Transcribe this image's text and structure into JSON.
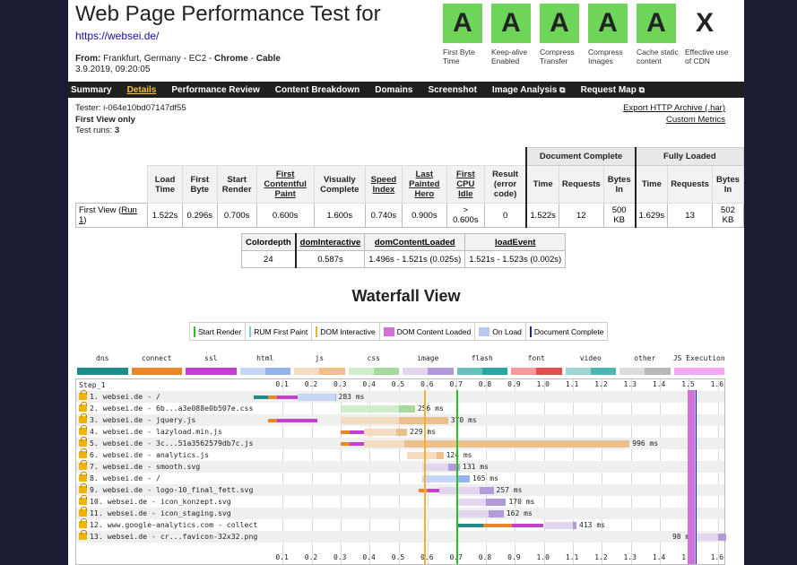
{
  "header": {
    "title": "Web Page Performance Test for",
    "url": "https://websei.de/",
    "from_label": "From:",
    "from_value": " Frankfurt, Germany - EC2 - ",
    "browser": "Chrome",
    "sep": " - ",
    "connection": "Cable",
    "date": "3.9.2019, 09:20:05"
  },
  "grades": [
    {
      "grade": "A",
      "label": "First Byte Time"
    },
    {
      "grade": "A",
      "label": "Keep-alive Enabled"
    },
    {
      "grade": "A",
      "label": "Compress Transfer"
    },
    {
      "grade": "A",
      "label": "Compress Images"
    },
    {
      "grade": "A",
      "label": "Cache static content"
    },
    {
      "grade": "X",
      "label": "Effective use of CDN"
    }
  ],
  "nav": {
    "summary": "Summary",
    "details": "Details",
    "perf_review": "Performance Review",
    "content_breakdown": "Content Breakdown",
    "domains": "Domains",
    "screenshot": "Screenshot",
    "image_analysis": "Image Analysis",
    "request_map": "Request Map",
    "ext_icon": "⧉"
  },
  "meta": {
    "tester": "Tester: i-064e10bd07147df55",
    "first_view": "First View only",
    "runs_label": "Test runs: ",
    "runs_value": "3"
  },
  "links": {
    "har": "Export HTTP Archive (.har)",
    "custom": "Custom Metrics"
  },
  "results": {
    "group_doc": "Document Complete",
    "group_full": "Fully Loaded",
    "cols": {
      "load_time": "Load Time",
      "first_byte": "First Byte",
      "start_render": "Start Render",
      "first_contentful": "First Contentful Paint",
      "visually_complete": "Visually Complete",
      "speed_index": "Speed Index",
      "last_painted": "Last Painted Hero",
      "first_cpu": "First CPU Idle",
      "result": "Result (error code)",
      "time": "Time",
      "requests": "Requests",
      "bytes_in": "Bytes In"
    },
    "row": {
      "label": "First View (",
      "run": "Run 1",
      "label_end": ")",
      "load_time": "1.522s",
      "first_byte": "0.296s",
      "start_render": "0.700s",
      "first_contentful": "0.600s",
      "visually_complete": "1.600s",
      "speed_index": "0.740s",
      "last_painted": "0.900s",
      "first_cpu": "> 0.600s",
      "result": "0",
      "doc_time": "1.522s",
      "doc_requests": "12",
      "doc_bytes": "500 KB",
      "full_time": "1.629s",
      "full_requests": "13",
      "full_bytes": "502 KB"
    }
  },
  "dom_table": {
    "cols": [
      "Colordepth",
      "domInteractive",
      "domContentLoaded",
      "loadEvent"
    ],
    "values": [
      "24",
      "0.587s",
      "1.496s - 1.521s (0.025s)",
      "1.521s - 1.523s (0.002s)"
    ]
  },
  "waterfall": {
    "title": "Waterfall View",
    "legend": [
      {
        "label": "Start Render",
        "color": "#28c028",
        "kind": "line"
      },
      {
        "label": "RUM First Paint",
        "color": "#80d0d0",
        "kind": "line"
      },
      {
        "label": "DOM Interactive",
        "color": "#f0b030",
        "kind": "line"
      },
      {
        "label": "DOM Content Loaded",
        "color": "#d070d8",
        "kind": "box"
      },
      {
        "label": "On Load",
        "color": "#b8c8f0",
        "kind": "box"
      },
      {
        "label": "Document Complete",
        "color": "#2020c0",
        "kind": "line"
      }
    ],
    "types": [
      {
        "label": "dns",
        "c1": "#1e8a8a",
        "c2": "#1e8a8a"
      },
      {
        "label": "connect",
        "c1": "#e8872a",
        "c2": "#e8872a"
      },
      {
        "label": "ssl",
        "c1": "#c43fce",
        "c2": "#c43fce"
      },
      {
        "label": "html",
        "c1": "#c6d6f4",
        "c2": "#92b4ea"
      },
      {
        "label": "js",
        "c1": "#f3dcbf",
        "c2": "#ebc08c"
      },
      {
        "label": "css",
        "c1": "#cfeccb",
        "c2": "#a5da9c"
      },
      {
        "label": "image",
        "c1": "#e2d6ef",
        "c2": "#b39bd9"
      },
      {
        "label": "flash",
        "c1": "#6bc0c0",
        "c2": "#2da4a4"
      },
      {
        "label": "font",
        "c1": "#f49a9a",
        "c2": "#e24e4e"
      },
      {
        "label": "video",
        "c1": "#9fd4d4",
        "c2": "#4eb4b4"
      },
      {
        "label": "other",
        "c1": "#dcdcdc",
        "c2": "#b8b8b8"
      },
      {
        "label": "JS Execution",
        "c1": "#f5a7f5",
        "c2": "#f5a7f5"
      }
    ],
    "step": "Step_1",
    "ticks": [
      "0.1",
      "0.2",
      "0.3",
      "0.4",
      "0.5",
      "0.6",
      "0.7",
      "0.8",
      "0.9",
      "1.0",
      "1.1",
      "1.2",
      "1.3",
      "1.4",
      "1.5",
      "1.6"
    ],
    "markers": {
      "start_render": 0.7,
      "dom_interactive": 0.587,
      "dom_content_loaded": [
        1.496,
        1.521
      ],
      "on_load": [
        1.521,
        1.523
      ],
      "doc_complete": 1.522
    },
    "requests": [
      {
        "name": "1. websei.de - /",
        "type": "html",
        "dns": [
          0.0,
          0.05
        ],
        "connect": [
          0.05,
          0.08
        ],
        "ssl": [
          0.08,
          0.15
        ],
        "wait": [
          0.15,
          0.28
        ],
        "recv": [
          0.28,
          0.283
        ],
        "ms": "283 ms"
      },
      {
        "name": "2. websei.de - 6b...a3e088e0b507e.css",
        "type": "css",
        "wait": [
          0.3,
          0.5
        ],
        "recv": [
          0.5,
          0.556
        ],
        "ms": "256 ms"
      },
      {
        "name": "3. websei.de - jquery.js",
        "type": "js",
        "connect": [
          0.05,
          0.08
        ],
        "ssl": [
          0.08,
          0.22
        ],
        "wait": [
          0.3,
          0.5
        ],
        "recv": [
          0.5,
          0.67
        ],
        "ms": "370 ms"
      },
      {
        "name": "4. websei.de - lazyload.min.js",
        "type": "js",
        "connect": [
          0.3,
          0.33
        ],
        "ssl": [
          0.33,
          0.38
        ],
        "wait": [
          0.38,
          0.49
        ],
        "recv": [
          0.49,
          0.529
        ],
        "ms": "229 ms"
      },
      {
        "name": "5. websei.de - 3c...51a3562579db7c.js",
        "type": "js",
        "connect": [
          0.3,
          0.33
        ],
        "ssl": [
          0.33,
          0.38
        ],
        "wait": [
          0.38,
          0.52
        ],
        "recv": [
          0.52,
          1.296
        ],
        "ms": "996 ms"
      },
      {
        "name": "6. websei.de - analytics.js",
        "type": "js",
        "wait": [
          0.53,
          0.63
        ],
        "recv": [
          0.63,
          0.654
        ],
        "ms": "124 ms"
      },
      {
        "name": "7. websei.de - smooth.svg",
        "type": "image",
        "wait": [
          0.58,
          0.67
        ],
        "recv": [
          0.67,
          0.711
        ],
        "ms": "131 ms"
      },
      {
        "name": "8. websei.de - /",
        "type": "html",
        "wait": [
          0.58,
          0.7
        ],
        "recv": [
          0.7,
          0.745
        ],
        "ms": "165 ms"
      },
      {
        "name": "9. websei.de - logo-10_final_fett.svg",
        "type": "image",
        "connect": [
          0.57,
          0.6
        ],
        "ssl": [
          0.6,
          0.64
        ],
        "wait": [
          0.64,
          0.78
        ],
        "recv": [
          0.78,
          0.827
        ],
        "ms": "257 ms"
      },
      {
        "name": "10. websei.de - icon_konzept.svg",
        "type": "image",
        "wait": [
          0.7,
          0.8
        ],
        "recv": [
          0.8,
          0.87
        ],
        "ms": "170 ms"
      },
      {
        "name": "11. websei.de - icon_staging.svg",
        "type": "image",
        "wait": [
          0.7,
          0.81
        ],
        "recv": [
          0.81,
          0.862
        ],
        "ms": "162 ms"
      },
      {
        "name": "12. www.google-analytics.com - collect",
        "type": "image",
        "dns": [
          0.7,
          0.79
        ],
        "connect": [
          0.79,
          0.89
        ],
        "ssl": [
          0.89,
          1.0
        ],
        "wait": [
          1.0,
          1.1
        ],
        "recv": [
          1.1,
          1.113
        ],
        "ms": "413 ms"
      },
      {
        "name": "13. websei.de - cr...favicon-32x32.png",
        "type": "image",
        "wait": [
          1.53,
          1.6
        ],
        "recv": [
          1.6,
          1.628
        ],
        "ms": "98 ms"
      }
    ]
  }
}
